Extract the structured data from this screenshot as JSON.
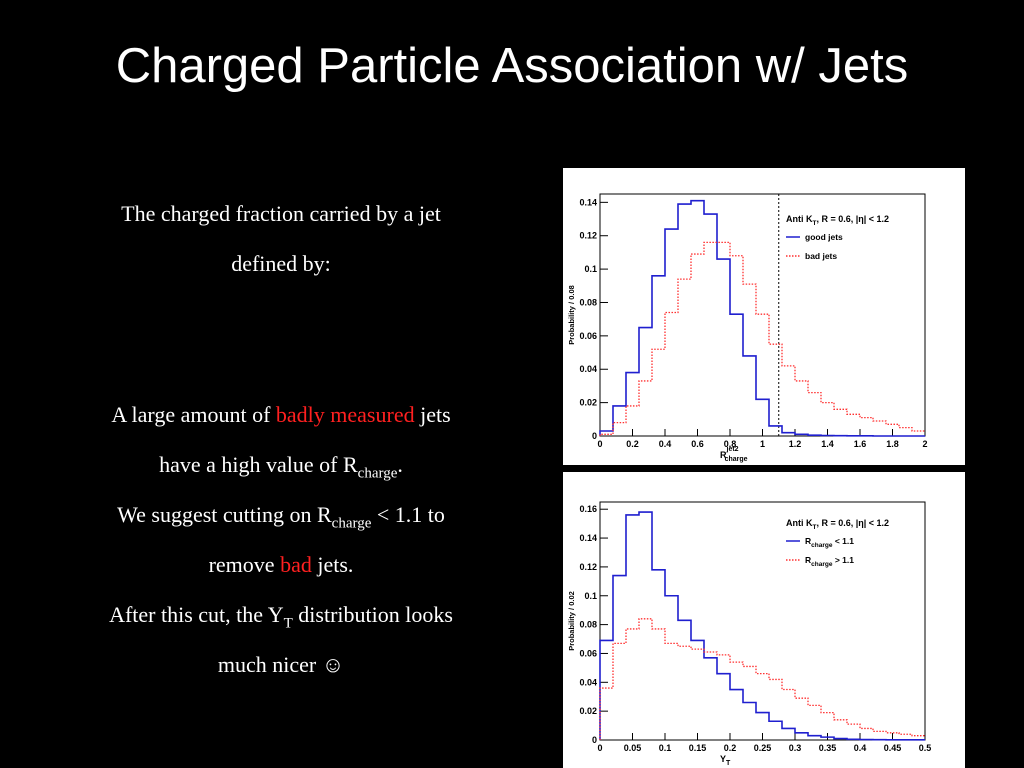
{
  "slide": {
    "title": "Charged Particle Association w/ Jets",
    "intro_line1": "The charged fraction carried by a jet",
    "intro_line2": "defined by:",
    "p1_a": "A large amount of ",
    "p1_highlight": "badly measured",
    "p1_b": " jets",
    "p2_a": "have a high value of R",
    "p2_sub": "charge",
    "p2_b": ".",
    "p3_a": "We suggest cutting on R",
    "p3_sub": "charge",
    "p3_b": " < 1.1 to",
    "p4_a": "remove ",
    "p4_highlight": "bad",
    "p4_b": " jets.",
    "p5_a": "After this cut, the Y",
    "p5_sub": "T",
    "p5_b": " distribution looks",
    "p6": "much nicer ☺",
    "colors": {
      "text": "#ffffff",
      "accent": "#ff2020",
      "background": "#000000"
    }
  },
  "chart_data": [
    {
      "type": "line",
      "title": "",
      "xlabel_main": "R",
      "xlabel_sup": "jet2",
      "xlabel_sub": "charge",
      "ylabel": "Probability / 0.08",
      "xlim": [
        0,
        2
      ],
      "ylim": [
        0,
        0.145
      ],
      "xticks": [
        0,
        0.2,
        0.4,
        0.6,
        0.8,
        1,
        1.2,
        1.4,
        1.6,
        1.8,
        2
      ],
      "xtick_labels": [
        "0",
        "0.2",
        "0.4",
        "0.6",
        "0.8",
        "1",
        "1.2",
        "1.4",
        "1.6",
        "1.8",
        "2"
      ],
      "yticks": [
        0,
        0.02,
        0.04,
        0.06,
        0.08,
        0.1,
        0.12,
        0.14
      ],
      "ytick_labels": [
        "0",
        "0.02",
        "0.04",
        "0.06",
        "0.08",
        "0.1",
        "0.12",
        "0.14"
      ],
      "bin_width": 0.08,
      "legend_header_a": "Anti K",
      "legend_header_sub": "T",
      "legend_header_b": ", R = 0.6, |η| < 1.2",
      "cut_line_x": 1.1,
      "series": [
        {
          "name": "good jets",
          "color": "#1f1fcf",
          "style": "solid",
          "values": [
            0.003,
            0.018,
            0.038,
            0.065,
            0.096,
            0.124,
            0.139,
            0.141,
            0.133,
            0.106,
            0.073,
            0.048,
            0.022,
            0.006,
            0.002,
            0.001,
            0.0005,
            0.0003,
            0.0002,
            0.0001,
            0.0001,
            0.0,
            0.0,
            0.0,
            0.0
          ]
        },
        {
          "name": "bad jets",
          "color": "#ff3030",
          "style": "dotted",
          "values": [
            0.001,
            0.008,
            0.018,
            0.033,
            0.052,
            0.074,
            0.094,
            0.109,
            0.116,
            0.116,
            0.108,
            0.091,
            0.073,
            0.055,
            0.042,
            0.033,
            0.026,
            0.02,
            0.016,
            0.013,
            0.011,
            0.009,
            0.007,
            0.005,
            0.003
          ]
        }
      ]
    },
    {
      "type": "line",
      "title": "",
      "xlabel_main": "Y",
      "xlabel_sup": "",
      "xlabel_sub": "T",
      "ylabel": "Probability / 0.02",
      "xlim": [
        0,
        0.5
      ],
      "ylim": [
        0,
        0.165
      ],
      "xticks": [
        0,
        0.05,
        0.1,
        0.15,
        0.2,
        0.25,
        0.3,
        0.35,
        0.4,
        0.45,
        0.5
      ],
      "xtick_labels": [
        "0",
        "0.05",
        "0.1",
        "0.15",
        "0.2",
        "0.25",
        "0.3",
        "0.35",
        "0.4",
        "0.45",
        "0.5"
      ],
      "yticks": [
        0,
        0.02,
        0.04,
        0.06,
        0.08,
        0.1,
        0.12,
        0.14,
        0.16
      ],
      "ytick_labels": [
        "0",
        "0.02",
        "0.04",
        "0.06",
        "0.08",
        "0.1",
        "0.12",
        "0.14",
        "0.16"
      ],
      "bin_width": 0.02,
      "legend_header_a": "Anti K",
      "legend_header_sub": "T",
      "legend_header_b": ", R = 0.6, |η| < 1.2",
      "cut_line_x": null,
      "series": [
        {
          "name_main": "R",
          "name_sub": "charge",
          "name_rest": " < 1.1",
          "color": "#1f1fcf",
          "style": "solid",
          "values": [
            0.069,
            0.114,
            0.156,
            0.158,
            0.118,
            0.1,
            0.083,
            0.069,
            0.057,
            0.046,
            0.035,
            0.026,
            0.019,
            0.013,
            0.008,
            0.005,
            0.003,
            0.002,
            0.001,
            0.0005,
            0.0003,
            0.0002,
            0.0001,
            0.0001,
            0.0001
          ]
        },
        {
          "name_main": "R",
          "name_sub": "charge",
          "name_rest": " > 1.1",
          "color": "#ff3030",
          "style": "dotted",
          "values": [
            0.036,
            0.067,
            0.077,
            0.084,
            0.077,
            0.067,
            0.065,
            0.063,
            0.061,
            0.059,
            0.054,
            0.051,
            0.046,
            0.042,
            0.035,
            0.029,
            0.024,
            0.019,
            0.014,
            0.011,
            0.008,
            0.006,
            0.005,
            0.004,
            0.003
          ]
        }
      ]
    }
  ]
}
